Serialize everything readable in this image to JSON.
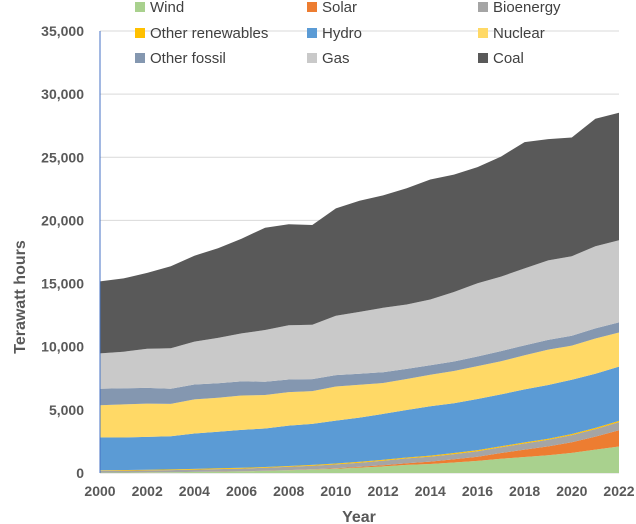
{
  "chart_data": {
    "type": "area",
    "title": "",
    "xlabel": "Year",
    "ylabel": "Terawatt hours",
    "ylim": [
      0,
      35000
    ],
    "yticks": [
      "0",
      "5,000",
      "10,000",
      "15,000",
      "20,000",
      "25,000",
      "30,000",
      "35,000"
    ],
    "xticks": [
      "2000",
      "2002",
      "2004",
      "2006",
      "2008",
      "2010",
      "2012",
      "2014",
      "2016",
      "2018",
      "2020",
      "2022"
    ],
    "stacked": true,
    "grid": "horizontal",
    "legend_position": "top",
    "x": [
      2000,
      2001,
      2002,
      2003,
      2004,
      2005,
      2006,
      2007,
      2008,
      2009,
      2010,
      2011,
      2012,
      2013,
      2014,
      2015,
      2016,
      2017,
      2018,
      2019,
      2020,
      2021,
      2022
    ],
    "series": [
      {
        "name": "Wind",
        "color": "#a9d18e",
        "values": [
          30,
          40,
          50,
          60,
          85,
          105,
          130,
          170,
          220,
          275,
          340,
          430,
          520,
          640,
          710,
          830,
          960,
          1130,
          1270,
          1410,
          1590,
          1850,
          2100
        ]
      },
      {
        "name": "Solar",
        "color": "#ed7d31",
        "values": [
          1,
          2,
          3,
          4,
          5,
          6,
          7,
          8,
          12,
          20,
          32,
          60,
          100,
          135,
          190,
          255,
          330,
          450,
          580,
          700,
          850,
          1030,
          1290
        ]
      },
      {
        "name": "Bioenergy",
        "color": "#a5a5a5",
        "values": [
          140,
          145,
          155,
          165,
          180,
          200,
          215,
          235,
          255,
          275,
          310,
          325,
          355,
          380,
          400,
          415,
          440,
          460,
          485,
          520,
          560,
          600,
          640
        ]
      },
      {
        "name": "Other renewables",
        "color": "#ffc000",
        "values": [
          50,
          52,
          54,
          56,
          58,
          60,
          62,
          64,
          66,
          68,
          70,
          72,
          74,
          76,
          78,
          80,
          82,
          84,
          86,
          88,
          90,
          92,
          95
        ]
      },
      {
        "name": "Hydro",
        "color": "#5b9bd5",
        "values": [
          2600,
          2570,
          2600,
          2630,
          2800,
          2900,
          3000,
          3050,
          3200,
          3250,
          3400,
          3500,
          3630,
          3760,
          3900,
          3950,
          4050,
          4100,
          4200,
          4250,
          4300,
          4280,
          4300
        ]
      },
      {
        "name": "Nuclear",
        "color": "#ffd966",
        "values": [
          2550,
          2620,
          2630,
          2560,
          2700,
          2680,
          2720,
          2650,
          2650,
          2600,
          2700,
          2600,
          2450,
          2450,
          2500,
          2550,
          2600,
          2630,
          2700,
          2800,
          2700,
          2800,
          2700
        ]
      },
      {
        "name": "Other fossil",
        "color": "#8497b0",
        "values": [
          1300,
          1280,
          1250,
          1200,
          1180,
          1150,
          1120,
          1050,
          1000,
          950,
          900,
          870,
          850,
          800,
          760,
          750,
          760,
          800,
          780,
          770,
          780,
          800,
          800
        ]
      },
      {
        "name": "Gas",
        "color": "#c9c9c9",
        "values": [
          2800,
          2900,
          3100,
          3200,
          3400,
          3600,
          3800,
          4100,
          4300,
          4300,
          4700,
          4900,
          5100,
          5100,
          5200,
          5500,
          5800,
          5900,
          6100,
          6300,
          6300,
          6500,
          6500
        ]
      },
      {
        "name": "Coal",
        "color": "#595959",
        "values": [
          5700,
          5800,
          6000,
          6500,
          6800,
          7100,
          7500,
          8100,
          8000,
          7900,
          8500,
          8800,
          8900,
          9200,
          9500,
          9300,
          9200,
          9500,
          10000,
          9600,
          9400,
          10100,
          10100
        ]
      }
    ]
  }
}
